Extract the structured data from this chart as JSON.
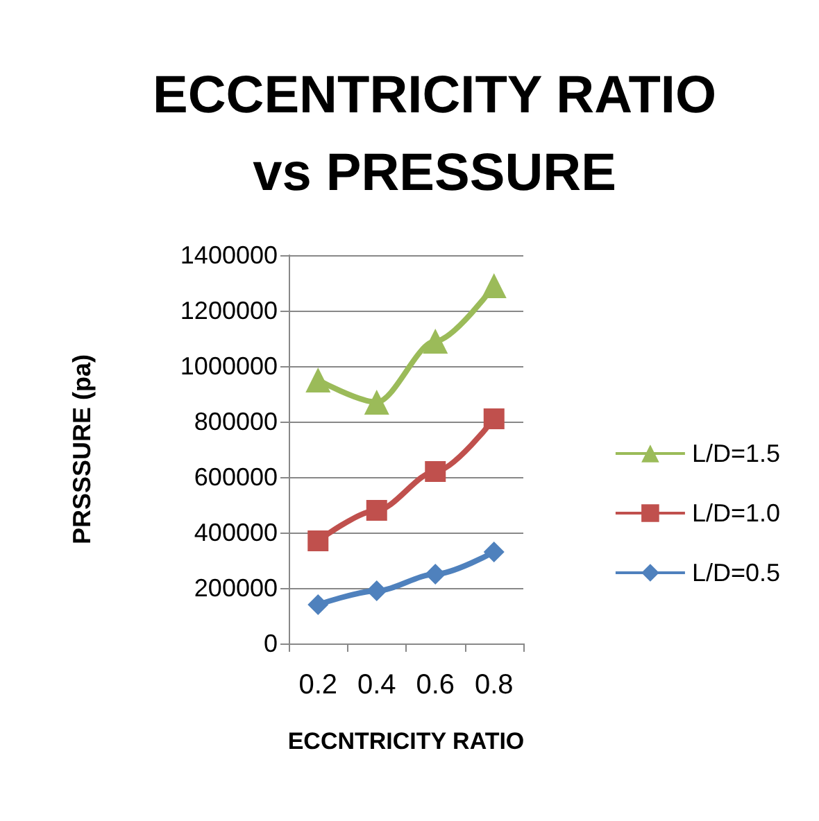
{
  "chart_data": {
    "type": "line",
    "title": "ECCENTRICITY RATIO\nvs PRESSURE",
    "xlabel": "ECCNTRICITY RATIO",
    "ylabel": "PRSSSURE (pa)",
    "categories": [
      "0.2",
      "0.4",
      "0.6",
      "0.8"
    ],
    "series": [
      {
        "name": "L/D=1.5",
        "color": "#9bbb59",
        "marker": "triangle",
        "values": [
          950000,
          870000,
          1090000,
          1290000
        ]
      },
      {
        "name": "L/D=1.0",
        "color": "#c0504d",
        "marker": "square",
        "values": [
          370000,
          480000,
          620000,
          810000
        ]
      },
      {
        "name": "L/D=0.5",
        "color": "#4f81bd",
        "marker": "diamond",
        "values": [
          140000,
          190000,
          250000,
          330000
        ]
      }
    ],
    "ylim": [
      0,
      1400000
    ],
    "yticks": [
      0,
      200000,
      400000,
      600000,
      800000,
      1000000,
      1200000,
      1400000
    ],
    "grid": "y",
    "legend": "right"
  }
}
